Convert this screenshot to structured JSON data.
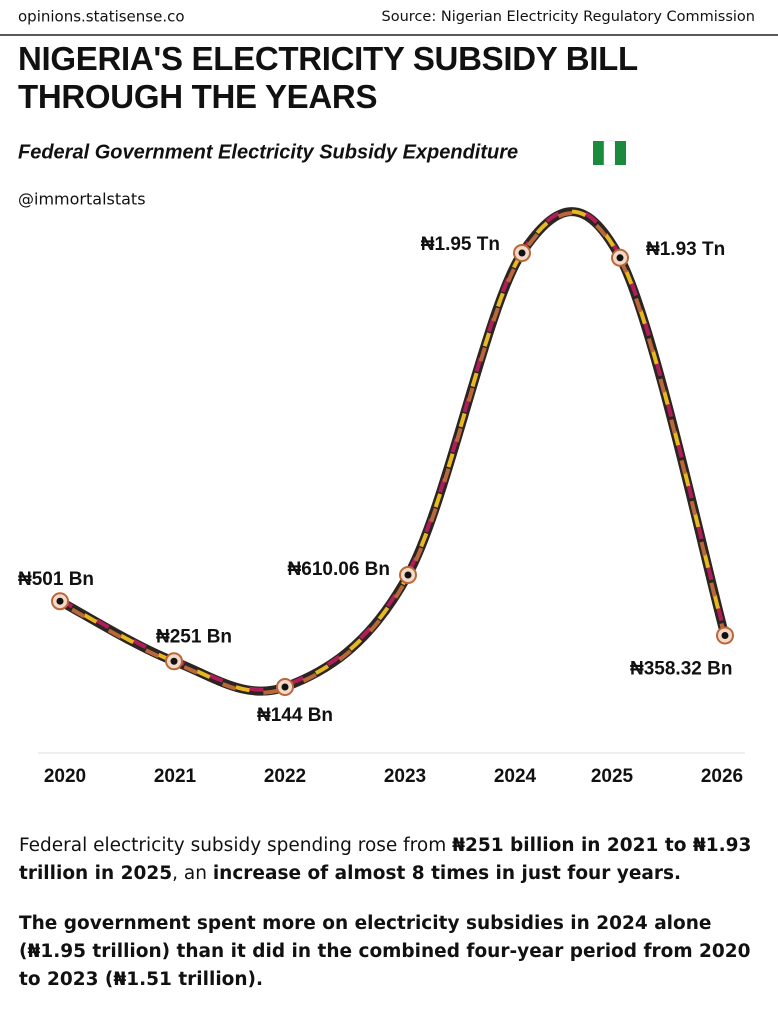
{
  "header": {
    "site": "opinions.statisense.co",
    "source": "Source: Nigerian Electricity Regulatory Commission"
  },
  "chart_data": {
    "type": "line",
    "title": "NIGERIA'S ELECTRICITY SUBSIDY BILL THROUGH THE YEARS",
    "subtitle": "Federal Government Electricity Subsidy Expenditure",
    "handle": "@immortalstats",
    "categories": [
      "2020",
      "2021",
      "2022",
      "2023",
      "2024",
      "2025",
      "2026"
    ],
    "values": [
      501,
      251,
      144,
      610.06,
      1950,
      1930,
      358.32
    ],
    "value_labels": [
      "₦501 Bn",
      "₦251 Bn",
      "₦144 Bn",
      "₦610.06 Bn",
      "₦1.95 Tn",
      "₦1.93 Tn",
      "₦358.32 Bn"
    ],
    "colors": [
      "#2b2420",
      "#b01e5a",
      "#e8b820",
      "#b8683a"
    ]
  },
  "notes": [
    [
      {
        "text": "Federal electricity subsidy spending rose from ",
        "bold": false
      },
      {
        "text": "₦251 billion in 2021 to ₦1.93 trillion in 2025",
        "bold": true
      },
      {
        "text": ", an ",
        "bold": false
      },
      {
        "text": "increase of almost 8 times in just four years.",
        "bold": true
      }
    ],
    [
      {
        "text": "The government spent more on electricity subsidies in 2024 alone (₦1.95 trillion) than it did in the combined four-year period from 2020 to 2023 (₦1.51 trillion).",
        "bold": true
      }
    ]
  ]
}
